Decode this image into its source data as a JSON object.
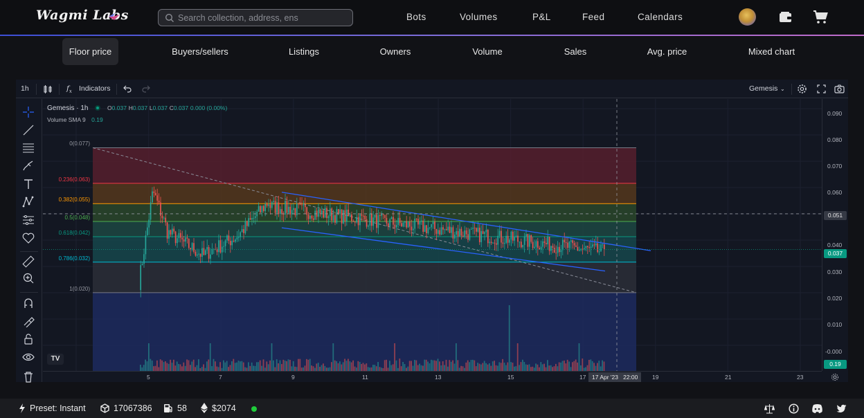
{
  "header": {
    "logo": "Wagmi Labs",
    "search_placeholder": "Search collection, address, ens",
    "nav": [
      "Bots",
      "Volumes",
      "P&L",
      "Feed",
      "Calendars"
    ]
  },
  "tabs": [
    "Floor price",
    "Buyers/sellers",
    "Listings",
    "Owners",
    "Volume",
    "Sales",
    "Avg. price",
    "Mixed chart"
  ],
  "active_tab": "Floor price",
  "chart_toolbar": {
    "interval": "1h",
    "indicators_label": "Indicators",
    "symbol_select": "Gemesis"
  },
  "chart_data": {
    "type": "candlestick",
    "symbol_label": "Gemesis · 1h",
    "ohlc": {
      "o_label": "O",
      "o": "0.037",
      "h_label": "H",
      "h": "0.037",
      "l_label": "L",
      "l": "0.037",
      "c_label": "C",
      "c": "0.037",
      "change": "0.000 (0.00%)"
    },
    "volume_label": "Volume",
    "volume_sma_label": "SMA 9",
    "volume_value": "0.19",
    "price_ticks": [
      "0.090",
      "0.080",
      "0.070",
      "0.060",
      "0.051",
      "0.040",
      "0.037",
      "0.030",
      "0.020",
      "0.010",
      "-0.000",
      "0.19"
    ],
    "time_ticks": [
      "5",
      "7",
      "9",
      "11",
      "13",
      "15",
      "17",
      "19",
      "21",
      "23"
    ],
    "crosshair_date": "17 Apr '23",
    "crosshair_time": "22:00",
    "crosshair_price": "0.051",
    "last_price": "0.037",
    "fib_levels": [
      {
        "label": "0(0.077)",
        "ratio": 0,
        "price": 0.077,
        "color": "#787b86"
      },
      {
        "label": "0.236(0.063)",
        "ratio": 0.236,
        "price": 0.063,
        "color": "#f23645"
      },
      {
        "label": "0.382(0.055)",
        "ratio": 0.382,
        "price": 0.055,
        "color": "#ff9800"
      },
      {
        "label": "0.5(0.048)",
        "ratio": 0.5,
        "price": 0.048,
        "color": "#4caf50"
      },
      {
        "label": "0.618(0.042)",
        "ratio": 0.618,
        "price": 0.042,
        "color": "#089981"
      },
      {
        "label": "0.786(0.032)",
        "ratio": 0.786,
        "price": 0.032,
        "color": "#00bcd4"
      },
      {
        "label": "1(0.020)",
        "ratio": 1,
        "price": 0.02,
        "color": "#787b86"
      }
    ],
    "ylim": [
      -0.004,
      0.094
    ],
    "colors": {
      "up": "#26a69a",
      "down": "#ef5350",
      "channel": "#2962ff"
    }
  },
  "status": {
    "preset": "Preset: Instant",
    "block": "17067386",
    "gas": "58",
    "eth_price": "$2074"
  }
}
